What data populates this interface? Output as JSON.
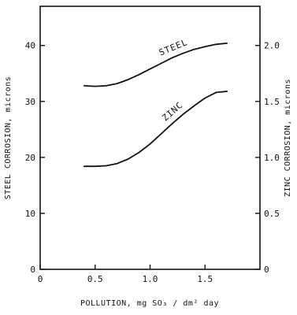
{
  "chart_data": {
    "type": "line",
    "xlabel": "POLLUTION, mg SO₃ / dm² day",
    "ylabel_left": "STEEL CORROSION, microns",
    "ylabel_right": "ZINC CORROSION, microns",
    "xlim": [
      0,
      2.0
    ],
    "ylim_left": [
      0,
      47
    ],
    "ylim_right": [
      0,
      2.35
    ],
    "x_ticks": [
      0,
      0.5,
      1.0,
      1.5
    ],
    "x_tick_labels": [
      "0",
      "0.5",
      "1.0",
      "1.5"
    ],
    "y_left_ticks": [
      0,
      10,
      20,
      30,
      40
    ],
    "y_left_tick_labels": [
      "0",
      "10",
      "20",
      "30",
      "40"
    ],
    "y_right_ticks": [
      0,
      0.5,
      1.0,
      1.5,
      2.0
    ],
    "y_right_tick_labels": [
      "0",
      "0.5",
      "1.0",
      "1.5",
      "2.0"
    ],
    "grid": false,
    "series": [
      {
        "name": "STEEL",
        "axis": "left",
        "x": [
          0.4,
          0.5,
          0.6,
          0.7,
          0.8,
          0.9,
          1.0,
          1.1,
          1.2,
          1.3,
          1.4,
          1.5,
          1.6,
          1.7
        ],
        "y": [
          32.8,
          32.7,
          32.8,
          33.2,
          33.9,
          34.8,
          35.8,
          36.8,
          37.8,
          38.6,
          39.3,
          39.8,
          40.2,
          40.4
        ],
        "color": "#111111"
      },
      {
        "name": "ZINC",
        "axis": "right",
        "x": [
          0.4,
          0.5,
          0.6,
          0.7,
          0.8,
          0.9,
          1.0,
          1.1,
          1.2,
          1.3,
          1.4,
          1.5,
          1.6,
          1.7
        ],
        "y": [
          0.92,
          0.92,
          0.925,
          0.945,
          0.985,
          1.045,
          1.12,
          1.21,
          1.3,
          1.385,
          1.46,
          1.53,
          1.58,
          1.59
        ],
        "color": "#111111"
      }
    ]
  }
}
